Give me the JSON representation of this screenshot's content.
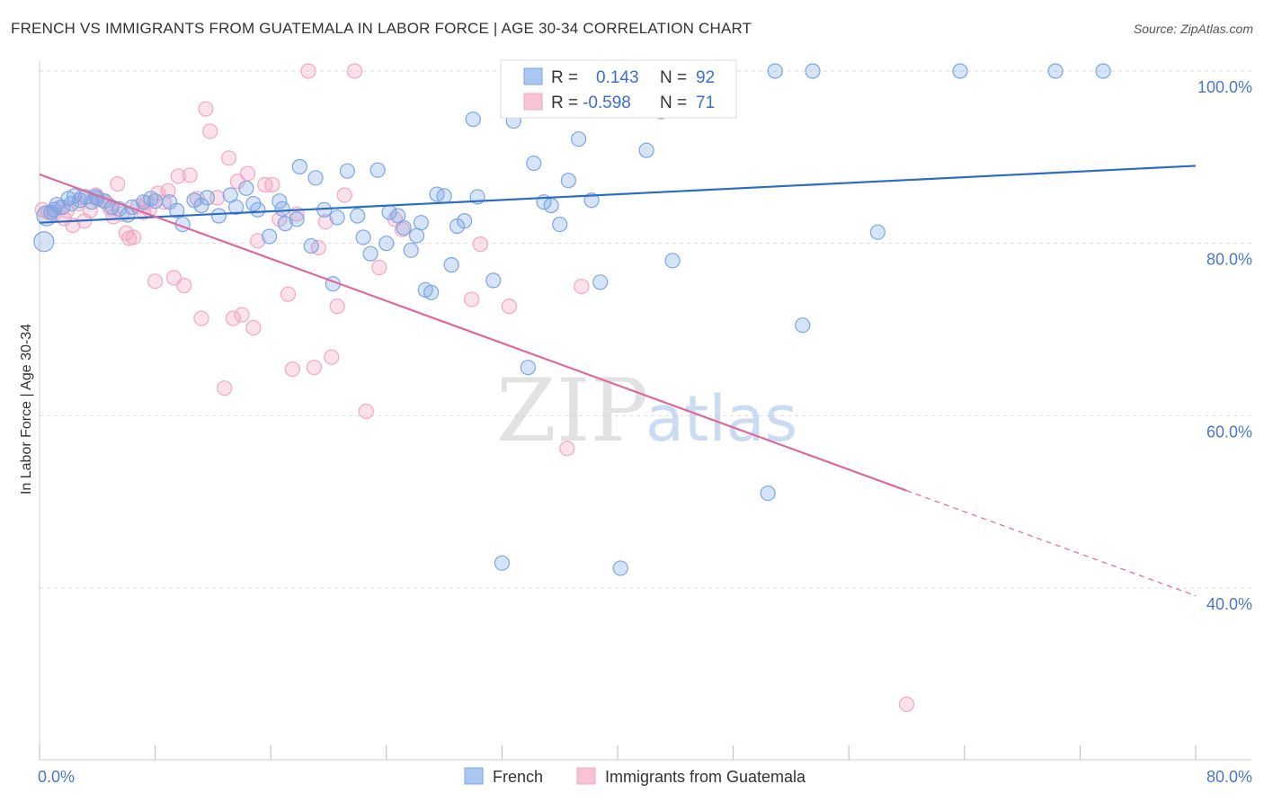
{
  "header": {
    "title": "FRENCH VS IMMIGRANTS FROM GUATEMALA IN LABOR FORCE | AGE 30-34 CORRELATION CHART",
    "source": "Source: ZipAtlas.com"
  },
  "watermark": {
    "zip": "ZIP",
    "atlas": "atlas"
  },
  "colors": {
    "french": "#7aa6e6",
    "french_line": "#2a6cc8",
    "guatemala": "#f2a8c2",
    "guatemala_line": "#e0679a",
    "tick_label": "#4a78c9",
    "grid": "#dddddd"
  },
  "legend": {
    "rows": [
      {
        "r_label": "R =",
        "r_value": "0.143",
        "n_label": "N =",
        "n_value": "92"
      },
      {
        "r_label": "R =",
        "r_value": "-0.598",
        "n_label": "N =",
        "n_value": "71"
      }
    ]
  },
  "bottom_legend": [
    "French",
    "Immigrants from Guatemala"
  ],
  "chart_data": {
    "type": "scatter",
    "title": "FRENCH VS IMMIGRANTS FROM GUATEMALA IN LABOR FORCE | AGE 30-34 CORRELATION CHART",
    "xlabel": "",
    "ylabel": "In Labor Force | Age 30-34",
    "xlim": [
      0,
      80
    ],
    "ylim": [
      20,
      102
    ],
    "x_tick_labels": [
      "0.0%",
      "80.0%"
    ],
    "y_ticks": [
      100,
      80,
      60,
      40
    ],
    "y_tick_labels": [
      "100.0%",
      "80.0%",
      "60.0%",
      "40.0%"
    ],
    "grid": true,
    "legend_placement": "top-center",
    "series": [
      {
        "name": "French",
        "r": 0.143,
        "n": 92,
        "trend": {
          "x": [
            0,
            80
          ],
          "y": [
            82.4,
            89.0
          ]
        },
        "points": [
          [
            0.3,
            80.2
          ],
          [
            0.5,
            83.2
          ],
          [
            0.8,
            83.6
          ],
          [
            1.2,
            84.5
          ],
          [
            1.6,
            84.2
          ],
          [
            2.0,
            85.2
          ],
          [
            2.4,
            85.5
          ],
          [
            2.8,
            85.0
          ],
          [
            3.2,
            85.4
          ],
          [
            3.6,
            84.8
          ],
          [
            4.0,
            85.2
          ],
          [
            4.5,
            84.9
          ],
          [
            5.0,
            84.2
          ],
          [
            5.5,
            84.0
          ],
          [
            6.1,
            83.3
          ],
          [
            6.4,
            84.2
          ],
          [
            7.2,
            84.8
          ],
          [
            8.0,
            84.9
          ],
          [
            9.0,
            84.8
          ],
          [
            9.9,
            82.2
          ],
          [
            10.7,
            85.0
          ],
          [
            11.6,
            85.3
          ],
          [
            12.4,
            83.2
          ],
          [
            13.2,
            85.6
          ],
          [
            13.6,
            84.2
          ],
          [
            14.3,
            86.4
          ],
          [
            15.1,
            83.9
          ],
          [
            15.9,
            80.8
          ],
          [
            16.6,
            84.9
          ],
          [
            17.0,
            82.3
          ],
          [
            17.8,
            82.8
          ],
          [
            18.0,
            88.9
          ],
          [
            18.8,
            79.7
          ],
          [
            19.1,
            87.6
          ],
          [
            19.7,
            83.9
          ],
          [
            20.3,
            75.3
          ],
          [
            20.6,
            83.0
          ],
          [
            21.3,
            88.4
          ],
          [
            22.0,
            83.2
          ],
          [
            22.4,
            80.7
          ],
          [
            22.9,
            78.8
          ],
          [
            23.4,
            88.5
          ],
          [
            24.0,
            80.0
          ],
          [
            24.8,
            83.2
          ],
          [
            25.2,
            81.8
          ],
          [
            25.7,
            79.2
          ],
          [
            26.1,
            80.9
          ],
          [
            26.7,
            74.6
          ],
          [
            27.1,
            74.3
          ],
          [
            27.5,
            85.7
          ],
          [
            28.0,
            85.5
          ],
          [
            28.5,
            77.5
          ],
          [
            28.9,
            82.0
          ],
          [
            29.4,
            82.6
          ],
          [
            30.0,
            94.4
          ],
          [
            30.3,
            85.4
          ],
          [
            31.4,
            75.7
          ],
          [
            32.0,
            42.9
          ],
          [
            32.8,
            94.2
          ],
          [
            33.8,
            65.6
          ],
          [
            34.2,
            89.3
          ],
          [
            34.9,
            84.8
          ],
          [
            35.4,
            84.4
          ],
          [
            36.0,
            82.2
          ],
          [
            36.6,
            87.3
          ],
          [
            37.3,
            92.1
          ],
          [
            38.2,
            85.0
          ],
          [
            38.8,
            75.5
          ],
          [
            38.4,
            100.0
          ],
          [
            40.2,
            42.3
          ],
          [
            42.0,
            90.8
          ],
          [
            43.0,
            95.3
          ],
          [
            43.8,
            78.0
          ],
          [
            50.4,
            51.0
          ],
          [
            50.9,
            100.0
          ],
          [
            52.8,
            70.5
          ],
          [
            53.5,
            100.0
          ],
          [
            58.0,
            81.3
          ],
          [
            63.7,
            100.0
          ],
          [
            70.3,
            100.0
          ],
          [
            73.6,
            100.0
          ],
          [
            40.7,
            100.0
          ],
          [
            1.0,
            83.9
          ],
          [
            2.2,
            84.6
          ],
          [
            3.9,
            85.4
          ],
          [
            7.7,
            85.2
          ],
          [
            11.2,
            84.4
          ],
          [
            14.8,
            84.6
          ],
          [
            16.8,
            84.0
          ],
          [
            24.2,
            83.6
          ],
          [
            26.4,
            82.4
          ],
          [
            9.5,
            83.8
          ]
        ]
      },
      {
        "name": "Immigrants from Guatemala",
        "r": -0.598,
        "n": 71,
        "trend": {
          "x": [
            0,
            60
          ],
          "y": [
            88.0,
            51.3
          ]
        },
        "trend_dashed": {
          "x": [
            60,
            80
          ],
          "y": [
            51.3,
            39.1
          ]
        },
        "points": [
          [
            0.2,
            83.9
          ],
          [
            0.6,
            83.6
          ],
          [
            1.0,
            83.4
          ],
          [
            1.4,
            84.2
          ],
          [
            1.9,
            83.8
          ],
          [
            2.3,
            82.1
          ],
          [
            2.7,
            84.6
          ],
          [
            3.1,
            82.6
          ],
          [
            3.5,
            83.8
          ],
          [
            3.9,
            85.6
          ],
          [
            4.3,
            85.0
          ],
          [
            4.7,
            84.6
          ],
          [
            5.1,
            83.1
          ],
          [
            5.4,
            86.9
          ],
          [
            5.7,
            83.4
          ],
          [
            6.0,
            81.2
          ],
          [
            6.2,
            80.6
          ],
          [
            6.5,
            80.7
          ],
          [
            6.8,
            84.3
          ],
          [
            7.2,
            83.6
          ],
          [
            7.6,
            83.9
          ],
          [
            8.0,
            75.6
          ],
          [
            8.2,
            85.8
          ],
          [
            8.6,
            84.8
          ],
          [
            8.9,
            86.1
          ],
          [
            9.3,
            76.0
          ],
          [
            9.6,
            87.8
          ],
          [
            10.0,
            75.1
          ],
          [
            10.4,
            87.9
          ],
          [
            10.9,
            85.2
          ],
          [
            11.2,
            71.3
          ],
          [
            11.5,
            95.6
          ],
          [
            11.8,
            93.0
          ],
          [
            12.3,
            85.3
          ],
          [
            12.8,
            63.2
          ],
          [
            13.1,
            89.9
          ],
          [
            13.4,
            71.3
          ],
          [
            13.7,
            87.2
          ],
          [
            14.0,
            71.7
          ],
          [
            14.4,
            88.1
          ],
          [
            14.8,
            70.2
          ],
          [
            15.1,
            80.3
          ],
          [
            15.6,
            86.8
          ],
          [
            16.1,
            86.8
          ],
          [
            16.6,
            82.8
          ],
          [
            17.2,
            74.1
          ],
          [
            17.5,
            65.4
          ],
          [
            17.8,
            83.4
          ],
          [
            18.6,
            100.0
          ],
          [
            19.0,
            65.6
          ],
          [
            19.3,
            79.5
          ],
          [
            19.8,
            82.5
          ],
          [
            20.2,
            66.8
          ],
          [
            20.6,
            72.7
          ],
          [
            21.1,
            85.6
          ],
          [
            21.8,
            100.0
          ],
          [
            22.6,
            60.5
          ],
          [
            23.5,
            77.2
          ],
          [
            24.6,
            82.8
          ],
          [
            25.1,
            81.6
          ],
          [
            29.9,
            73.5
          ],
          [
            30.5,
            79.9
          ],
          [
            32.5,
            72.7
          ],
          [
            34.5,
            96.4
          ],
          [
            36.5,
            56.2
          ],
          [
            37.5,
            75.0
          ],
          [
            60.0,
            26.5
          ],
          [
            1.7,
            82.9
          ],
          [
            2.9,
            85.3
          ],
          [
            4.9,
            84.0
          ],
          [
            7.4,
            84.7
          ]
        ]
      }
    ]
  }
}
